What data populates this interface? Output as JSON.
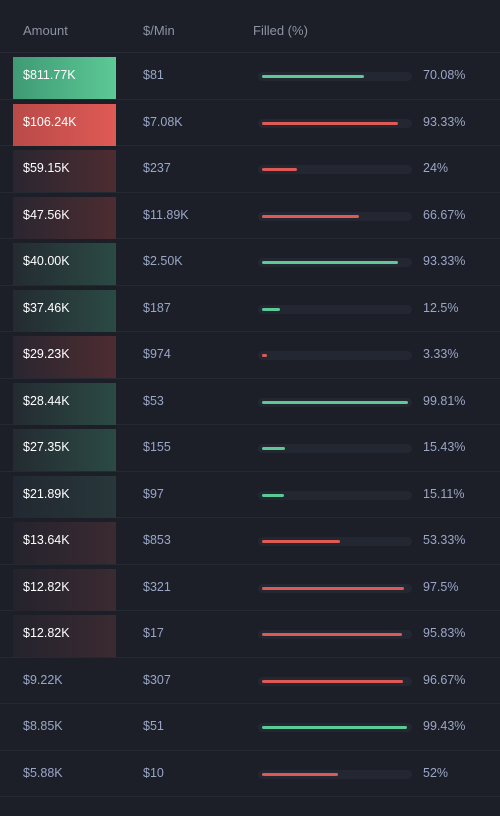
{
  "colors": {
    "buy": "#5cc996",
    "sell": "#df5a55"
  },
  "header": {
    "amount": "Amount",
    "rate": "$/Min",
    "filled": "Filled (%)"
  },
  "rows": [
    {
      "amount": "$811.77K",
      "rate": "$81",
      "filled_pct": 70.08,
      "filled_label": "70.08%",
      "side": "buy",
      "highlight": "strong"
    },
    {
      "amount": "$106.24K",
      "rate": "$7.08K",
      "filled_pct": 93.33,
      "filled_label": "93.33%",
      "side": "sell",
      "highlight": "strong"
    },
    {
      "amount": "$59.15K",
      "rate": "$237",
      "filled_pct": 24,
      "filled_label": "24%",
      "side": "sell",
      "highlight": "medium"
    },
    {
      "amount": "$47.56K",
      "rate": "$11.89K",
      "filled_pct": 66.67,
      "filled_label": "66.67%",
      "side": "sell",
      "highlight": "medium"
    },
    {
      "amount": "$40.00K",
      "rate": "$2.50K",
      "filled_pct": 93.33,
      "filled_label": "93.33%",
      "side": "buy",
      "highlight": "medium"
    },
    {
      "amount": "$37.46K",
      "rate": "$187",
      "filled_pct": 12.5,
      "filled_label": "12.5%",
      "side": "buy",
      "highlight": "medium"
    },
    {
      "amount": "$29.23K",
      "rate": "$974",
      "filled_pct": 3.33,
      "filled_label": "3.33%",
      "side": "sell",
      "highlight": "medium"
    },
    {
      "amount": "$28.44K",
      "rate": "$53",
      "filled_pct": 99.81,
      "filled_label": "99.81%",
      "side": "buy",
      "highlight": "medium"
    },
    {
      "amount": "$27.35K",
      "rate": "$155",
      "filled_pct": 15.43,
      "filled_label": "15.43%",
      "side": "buy",
      "highlight": "medium"
    },
    {
      "amount": "$21.89K",
      "rate": "$97",
      "filled_pct": 15.11,
      "filled_label": "15.11%",
      "side": "buy",
      "highlight": "light"
    },
    {
      "amount": "$13.64K",
      "rate": "$853",
      "filled_pct": 53.33,
      "filled_label": "53.33%",
      "side": "sell",
      "highlight": "light"
    },
    {
      "amount": "$12.82K",
      "rate": "$321",
      "filled_pct": 97.5,
      "filled_label": "97.5%",
      "side": "sell",
      "highlight": "light"
    },
    {
      "amount": "$12.82K",
      "rate": "$17",
      "filled_pct": 95.83,
      "filled_label": "95.83%",
      "side": "sell",
      "highlight": "light"
    },
    {
      "amount": "$9.22K",
      "rate": "$307",
      "filled_pct": 96.67,
      "filled_label": "96.67%",
      "side": "sell",
      "highlight": "none"
    },
    {
      "amount": "$8.85K",
      "rate": "$51",
      "filled_pct": 99.43,
      "filled_label": "99.43%",
      "side": "buy",
      "highlight": "none"
    },
    {
      "amount": "$5.88K",
      "rate": "$10",
      "filled_pct": 52,
      "filled_label": "52%",
      "side": "sell",
      "highlight": "none"
    }
  ]
}
